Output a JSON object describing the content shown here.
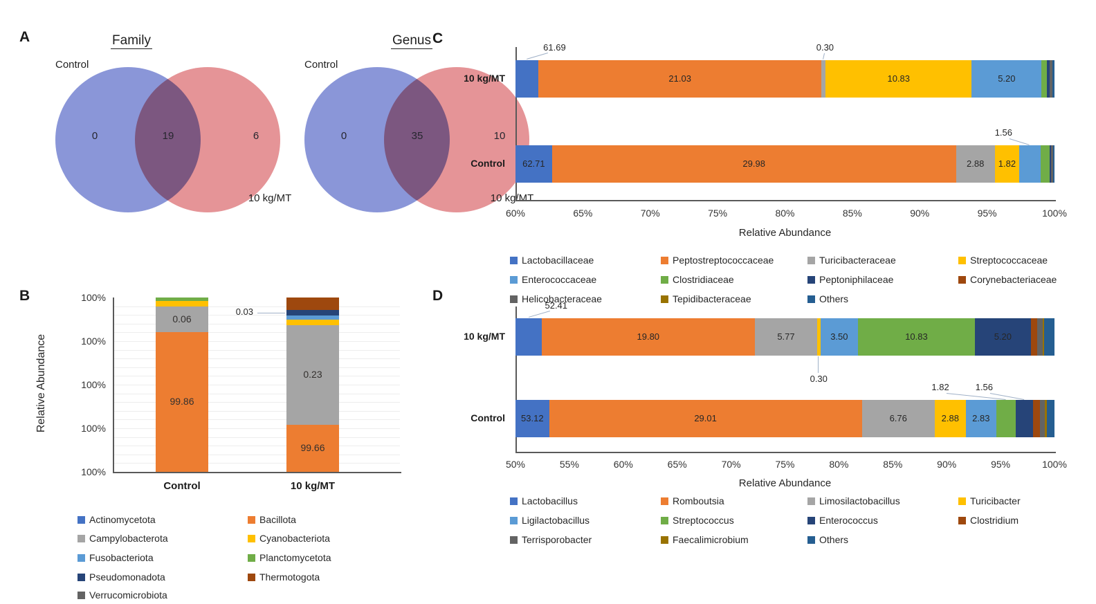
{
  "colors": {
    "blue": "#4472C4",
    "orange": "#ED7D31",
    "gray": "#A5A5A5",
    "gold": "#FFC000",
    "lightblue": "#5B9BD5",
    "green": "#70AD47",
    "navy": "#264478",
    "brown": "#9E480E",
    "darkgray": "#636363",
    "olive": "#997300",
    "teal": "#255E91",
    "venn_blue": "#8A96D8",
    "venn_red": "#E59497"
  },
  "panels": {
    "A": {
      "letter": "A"
    },
    "B": {
      "letter": "B"
    },
    "C": {
      "letter": "C"
    },
    "D": {
      "letter": "D"
    }
  },
  "chart_data": [
    {
      "id": "VennFamily",
      "type": "venn",
      "title": "Family",
      "left_set": "Control",
      "right_set": "10 kg/MT",
      "left_only": 0,
      "overlap": 19,
      "right_only": 6
    },
    {
      "id": "VennGenus",
      "type": "venn",
      "title": "Genus",
      "left_set": "Control",
      "right_set": "10 kg/MT",
      "left_only": 0,
      "overlap": 35,
      "right_only": 10
    },
    {
      "id": "B",
      "type": "bar",
      "orientation": "vertical",
      "stacked": true,
      "ylabel": "Relative Abundance",
      "yticks": [
        "100%",
        "100%",
        "100%",
        "100%",
        "100%"
      ],
      "categories": [
        "Control",
        "10 kg/MT"
      ],
      "legend_position": "bottom",
      "legend": [
        {
          "label": "Actinomycetota",
          "color": "blue"
        },
        {
          "label": "Bacillota",
          "color": "orange"
        },
        {
          "label": "Campylobacterota",
          "color": "gray"
        },
        {
          "label": "Cyanobacteriota",
          "color": "gold"
        },
        {
          "label": "Fusobacteriota",
          "color": "lightblue"
        },
        {
          "label": "Planctomycetota",
          "color": "green"
        },
        {
          "label": "Pseudomonadota",
          "color": "navy"
        },
        {
          "label": "Thermotogota",
          "color": "brown"
        },
        {
          "label": "Verrucomicrobiota",
          "color": "darkgray"
        }
      ],
      "bars": [
        {
          "category": "Control",
          "segments": [
            {
              "name": "Bacillota",
              "color": "orange",
              "value_label": "99.86",
              "height_pct": 80
            },
            {
              "name": "Campylobacterota",
              "color": "gray",
              "value_label": "0.06",
              "height_pct": 14.8
            },
            {
              "name": "Cyanobacteriota",
              "color": "gold",
              "height_pct": 3.1
            },
            {
              "name": "Planctomycetota",
              "color": "green",
              "height_pct": 2.1
            }
          ]
        },
        {
          "category": "10 kg/MT",
          "segments": [
            {
              "name": "Bacillota",
              "color": "orange",
              "value_label": "99.66",
              "height_pct": 27
            },
            {
              "name": "Campylobacterota",
              "color": "gray",
              "value_label": "0.23",
              "height_pct": 57
            },
            {
              "name": "Cyanobacteriota",
              "color": "gold",
              "height_pct": 3.4
            },
            {
              "name": "Fusobacteriota",
              "color": "lightblue",
              "height_pct": 2.2
            },
            {
              "name": "Pseudomonadota",
              "color": "navy",
              "height_pct": 3.2,
              "callout": {
                "text": "0.03",
                "side": "left"
              }
            },
            {
              "name": "Thermotogota",
              "color": "brown",
              "height_pct": 7.2
            }
          ]
        }
      ]
    },
    {
      "id": "C",
      "type": "bar",
      "orientation": "horizontal",
      "stacked": true,
      "xlabel": "Relative Abundance",
      "xlim": [
        60,
        100
      ],
      "xticks": [
        "60%",
        "65%",
        "70%",
        "75%",
        "80%",
        "85%",
        "90%",
        "95%",
        "100%"
      ],
      "legend_position": "bottom",
      "legend": [
        {
          "label": "Lactobacillaceae",
          "color": "blue"
        },
        {
          "label": "Peptostreptococcaceae",
          "color": "orange"
        },
        {
          "label": "Turicibacteraceae",
          "color": "gray"
        },
        {
          "label": "Streptococcaceae",
          "color": "gold"
        },
        {
          "label": "Enterococcaceae",
          "color": "lightblue"
        },
        {
          "label": "Clostridiaceae",
          "color": "green"
        },
        {
          "label": "Peptoniphilaceae",
          "color": "navy"
        },
        {
          "label": "Corynebacteriaceae",
          "color": "brown"
        },
        {
          "label": "Helicobacteraceae",
          "color": "darkgray"
        },
        {
          "label": "Tepidibacteraceae",
          "color": "olive"
        },
        {
          "label": "Others",
          "color": "teal"
        }
      ],
      "rows": [
        {
          "label": "10 kg/MT",
          "segments": [
            {
              "name": "Lactobacillaceae",
              "color": "blue",
              "value": 61.69,
              "callout": {
                "side": "above",
                "dx": 40
              }
            },
            {
              "name": "Peptostreptococcaceae",
              "color": "orange",
              "value": 21.03,
              "show_label": true
            },
            {
              "name": "Turicibacteraceae",
              "color": "gray",
              "value": 0.3,
              "callout": {
                "side": "above",
                "dx": 2
              }
            },
            {
              "name": "Streptococcaceae",
              "color": "gold",
              "value": 10.83,
              "show_label": true
            },
            {
              "name": "Enterococcaceae",
              "color": "lightblue",
              "value": 5.2,
              "show_label": true
            },
            {
              "name": "Clostridiaceae",
              "color": "green",
              "value": 0.4
            },
            {
              "name": "Peptoniphilaceae",
              "color": "navy",
              "value": 0.18
            },
            {
              "name": "Helicobacteraceae",
              "color": "darkgray",
              "value": 0.22
            },
            {
              "name": "Others",
              "color": "teal",
              "value": 0.15
            }
          ]
        },
        {
          "label": "Control",
          "segments": [
            {
              "name": "Lactobacillaceae",
              "color": "blue",
              "value": 62.71,
              "show_label": true
            },
            {
              "name": "Peptostreptococcaceae",
              "color": "orange",
              "value": 29.98,
              "show_label": true
            },
            {
              "name": "Turicibacteraceae",
              "color": "gray",
              "value": 2.88,
              "show_label": true
            },
            {
              "name": "Streptococcaceae",
              "color": "gold",
              "value": 1.82,
              "show_label": true
            },
            {
              "name": "Enterococcaceae",
              "color": "lightblue",
              "value": 1.56,
              "callout": {
                "side": "above",
                "dx": -38
              }
            },
            {
              "name": "Clostridiaceae",
              "color": "green",
              "value": 0.7
            },
            {
              "name": "Peptoniphilaceae",
              "color": "navy",
              "value": 0.1
            },
            {
              "name": "Helicobacteraceae",
              "color": "darkgray",
              "value": 0.15
            },
            {
              "name": "Others",
              "color": "teal",
              "value": 0.1
            }
          ]
        }
      ]
    },
    {
      "id": "D",
      "type": "bar",
      "orientation": "horizontal",
      "stacked": true,
      "xlabel": "Relative Abundance",
      "xlim": [
        50,
        100
      ],
      "xticks": [
        "50%",
        "55%",
        "60%",
        "65%",
        "70%",
        "75%",
        "80%",
        "85%",
        "90%",
        "95%",
        "100%"
      ],
      "legend_position": "bottom",
      "legend": [
        {
          "label": "Lactobacillus",
          "color": "blue"
        },
        {
          "label": "Romboutsia",
          "color": "orange"
        },
        {
          "label": "Limosilactobacillus",
          "color": "gray"
        },
        {
          "label": "Turicibacter",
          "color": "gold"
        },
        {
          "label": "Ligilactobacillus",
          "color": "lightblue"
        },
        {
          "label": "Streptococcus",
          "color": "green"
        },
        {
          "label": "Enterococcus",
          "color": "navy"
        },
        {
          "label": "Clostridium",
          "color": "brown"
        },
        {
          "label": "Terrisporobacter",
          "color": "darkgray"
        },
        {
          "label": "Faecalimicrobium",
          "color": "olive"
        },
        {
          "label": "Others",
          "color": "teal"
        }
      ],
      "rows": [
        {
          "label": "10 kg/MT",
          "segments": [
            {
              "name": "Lactobacillus",
              "color": "blue",
              "value": 52.41,
              "callout": {
                "side": "above",
                "dx": 40
              }
            },
            {
              "name": "Romboutsia",
              "color": "orange",
              "value": 19.8,
              "show_label": true
            },
            {
              "name": "Limosilactobacillus",
              "color": "gray",
              "value": 5.77,
              "show_label": true
            },
            {
              "name": "Turicibacter",
              "color": "gold",
              "value": 0.3,
              "callout": {
                "side": "below",
                "dx": 0,
                "dy": 18
              }
            },
            {
              "name": "Ligilactobacillus",
              "color": "lightblue",
              "value": 3.5,
              "show_label": true
            },
            {
              "name": "Streptococcus",
              "color": "green",
              "value": 10.83,
              "show_label": true
            },
            {
              "name": "Enterococcus",
              "color": "navy",
              "value": 5.2,
              "show_label": true
            },
            {
              "name": "Clostridium",
              "color": "brown",
              "value": 0.6
            },
            {
              "name": "Terrisporobacter",
              "color": "darkgray",
              "value": 0.5
            },
            {
              "name": "Faecalimicrobium",
              "color": "olive",
              "value": 0.15
            },
            {
              "name": "Others",
              "color": "teal",
              "value": 0.94
            }
          ]
        },
        {
          "label": "Control",
          "segments": [
            {
              "name": "Lactobacillus",
              "color": "blue",
              "value": 53.12,
              "show_label": true
            },
            {
              "name": "Romboutsia",
              "color": "orange",
              "value": 29.01,
              "show_label": true
            },
            {
              "name": "Limosilactobacillus",
              "color": "gray",
              "value": 6.76,
              "show_label": true
            },
            {
              "name": "Turicibacter",
              "color": "gold",
              "value": 2.88,
              "show_label": true
            },
            {
              "name": "Ligilactobacillus",
              "color": "lightblue",
              "value": 2.83,
              "show_label": true
            },
            {
              "name": "Streptococcus",
              "color": "green",
              "value": 1.82,
              "callout": {
                "side": "above",
                "dx": -95
              }
            },
            {
              "name": "Enterococcus",
              "color": "navy",
              "value": 1.56,
              "callout": {
                "side": "above",
                "dx": -58
              }
            },
            {
              "name": "Clostridium",
              "color": "brown",
              "value": 0.65
            },
            {
              "name": "Terrisporobacter",
              "color": "darkgray",
              "value": 0.45
            },
            {
              "name": "Faecalimicrobium",
              "color": "olive",
              "value": 0.2
            },
            {
              "name": "Others",
              "color": "teal",
              "value": 0.72
            }
          ]
        }
      ]
    }
  ]
}
